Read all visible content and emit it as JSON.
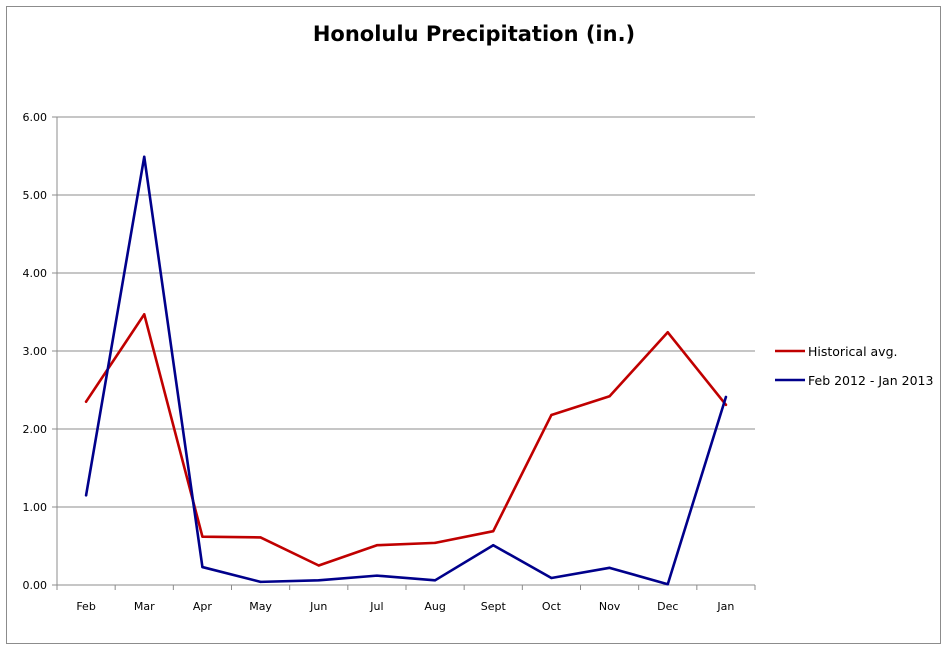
{
  "chart_data": {
    "type": "line",
    "title": "Honolulu Precipitation (in.)",
    "xlabel": "",
    "ylabel": "",
    "categories": [
      "Feb",
      "Mar",
      "Apr",
      "May",
      "Jun",
      "Jul",
      "Aug",
      "Sept",
      "Oct",
      "Nov",
      "Dec",
      "Jan"
    ],
    "ylim": [
      0,
      6
    ],
    "yticks": [
      "0.00",
      "1.00",
      "2.00",
      "3.00",
      "4.00",
      "5.00",
      "6.00"
    ],
    "grid": true,
    "legend_position": "right",
    "series": [
      {
        "name": "Historical avg.",
        "color": "#c00000",
        "values": [
          2.35,
          3.47,
          0.62,
          0.61,
          0.25,
          0.51,
          0.54,
          0.69,
          2.18,
          2.42,
          3.24,
          2.31
        ]
      },
      {
        "name": "Feb 2012 - Jan 2013",
        "color": "#00008b",
        "values": [
          1.15,
          5.49,
          0.23,
          0.04,
          0.06,
          0.12,
          0.06,
          0.51,
          0.09,
          0.22,
          0.01,
          2.41
        ]
      }
    ]
  }
}
